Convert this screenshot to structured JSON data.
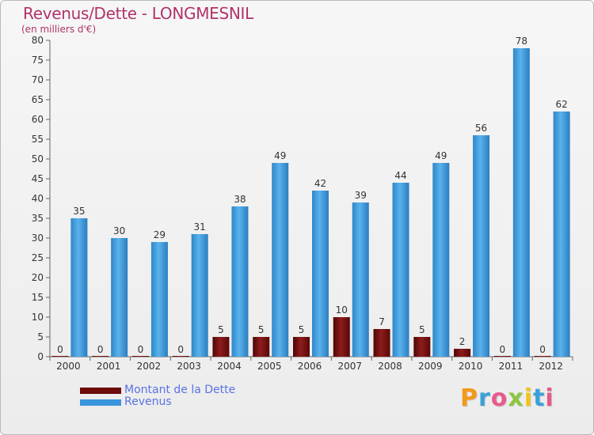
{
  "chart_data": {
    "type": "bar",
    "title": "Revenus/Dette - LONGMESNIL",
    "subtitle": "(en milliers d'€)",
    "xlabel": "",
    "ylabel": "",
    "ylim": [
      0,
      80
    ],
    "ytick_step": 5,
    "grid": false,
    "legend_position": "bottom-left",
    "categories": [
      "2000",
      "2001",
      "2002",
      "2003",
      "2004",
      "2005",
      "2006",
      "2007",
      "2008",
      "2009",
      "2010",
      "2011",
      "2012"
    ],
    "series": [
      {
        "name": "Montant de la Dette",
        "color": "#6d0a0a",
        "values": [
          0,
          0,
          0,
          0,
          5,
          5,
          5,
          10,
          7,
          5,
          2,
          0,
          0
        ]
      },
      {
        "name": "Revenus",
        "color": "#3a96dc",
        "values": [
          35,
          30,
          29,
          31,
          38,
          49,
          42,
          39,
          44,
          49,
          56,
          78,
          62
        ]
      }
    ]
  },
  "branding": {
    "logo_text": "Proxiti",
    "logo_colors": [
      "#f29a1a",
      "#3aa0d8",
      "#e85a8c",
      "#8cc63f",
      "#f2c21a",
      "#3aa0d8",
      "#e85a8c"
    ]
  }
}
